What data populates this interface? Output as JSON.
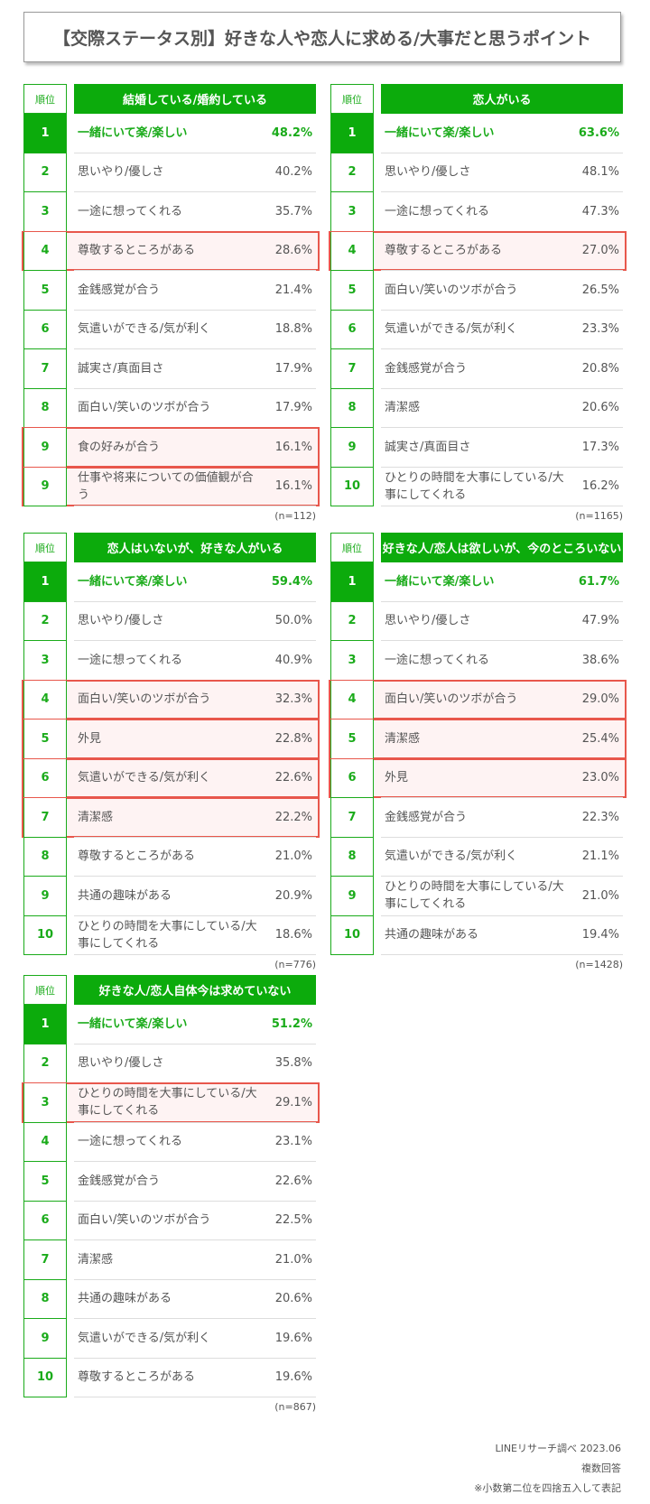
{
  "header": {
    "title": "【交際ステータス別】好きな人や恋人に求める/大事だと思うポイント"
  },
  "rank_header": "順位",
  "tables": [
    {
      "title": "結婚している/婚約している",
      "n": "(n=112)",
      "highlight_rows": [
        3,
        8,
        9
      ],
      "rows": [
        [
          "1",
          "一緒にいて楽/楽しい",
          "48.2%"
        ],
        [
          "2",
          "思いやり/優しさ",
          "40.2%"
        ],
        [
          "3",
          "一途に想ってくれる",
          "35.7%"
        ],
        [
          "4",
          "尊敬するところがある",
          "28.6%"
        ],
        [
          "5",
          "金銭感覚が合う",
          "21.4%"
        ],
        [
          "6",
          "気遣いができる/気が利く",
          "18.8%"
        ],
        [
          "7",
          "誠実さ/真面目さ",
          "17.9%"
        ],
        [
          "8",
          "面白い/笑いのツボが合う",
          "17.9%"
        ],
        [
          "9",
          "食の好みが合う",
          "16.1%"
        ],
        [
          "9",
          "仕事や将来についての価値観が合う",
          "16.1%"
        ]
      ]
    },
    {
      "title": "恋人がいる",
      "n": "(n=1165)",
      "highlight_rows": [
        3
      ],
      "rows": [
        [
          "1",
          "一緒にいて楽/楽しい",
          "63.6%"
        ],
        [
          "2",
          "思いやり/優しさ",
          "48.1%"
        ],
        [
          "3",
          "一途に想ってくれる",
          "47.3%"
        ],
        [
          "4",
          "尊敬するところがある",
          "27.0%"
        ],
        [
          "5",
          "面白い/笑いのツボが合う",
          "26.5%"
        ],
        [
          "6",
          "気遣いができる/気が利く",
          "23.3%"
        ],
        [
          "7",
          "金銭感覚が合う",
          "20.8%"
        ],
        [
          "8",
          "清潔感",
          "20.6%"
        ],
        [
          "9",
          "誠実さ/真面目さ",
          "17.3%"
        ],
        [
          "10",
          "ひとりの時間を大事にしている/大事にしてくれる",
          "16.2%"
        ]
      ]
    },
    {
      "title": "恋人はいないが、好きな人がいる",
      "n": "(n=776)",
      "highlight_rows": [
        3,
        4,
        5,
        6
      ],
      "rows": [
        [
          "1",
          "一緒にいて楽/楽しい",
          "59.4%"
        ],
        [
          "2",
          "思いやり/優しさ",
          "50.0%"
        ],
        [
          "3",
          "一途に想ってくれる",
          "40.9%"
        ],
        [
          "4",
          "面白い/笑いのツボが合う",
          "32.3%"
        ],
        [
          "5",
          "外見",
          "22.8%"
        ],
        [
          "6",
          "気遣いができる/気が利く",
          "22.6%"
        ],
        [
          "7",
          "清潔感",
          "22.2%"
        ],
        [
          "8",
          "尊敬するところがある",
          "21.0%"
        ],
        [
          "9",
          "共通の趣味がある",
          "20.9%"
        ],
        [
          "10",
          "ひとりの時間を大事にしている/大事にしてくれる",
          "18.6%"
        ]
      ]
    },
    {
      "title": "好きな人/恋人は欲しいが、今のところいない",
      "n": "(n=1428)",
      "highlight_rows": [
        3,
        4,
        5
      ],
      "rows": [
        [
          "1",
          "一緒にいて楽/楽しい",
          "61.7%"
        ],
        [
          "2",
          "思いやり/優しさ",
          "47.9%"
        ],
        [
          "3",
          "一途に想ってくれる",
          "38.6%"
        ],
        [
          "4",
          "面白い/笑いのツボが合う",
          "29.0%"
        ],
        [
          "5",
          "清潔感",
          "25.4%"
        ],
        [
          "6",
          "外見",
          "23.0%"
        ],
        [
          "7",
          "金銭感覚が合う",
          "22.3%"
        ],
        [
          "8",
          "気遣いができる/気が利く",
          "21.1%"
        ],
        [
          "9",
          "ひとりの時間を大事にしている/大事にしてくれる",
          "21.0%"
        ],
        [
          "10",
          "共通の趣味がある",
          "19.4%"
        ]
      ]
    },
    {
      "title": "好きな人/恋人自体今は求めていない",
      "n": "(n=867)",
      "highlight_rows": [
        2
      ],
      "rows": [
        [
          "1",
          "一緒にいて楽/楽しい",
          "51.2%"
        ],
        [
          "2",
          "思いやり/優しさ",
          "35.8%"
        ],
        [
          "3",
          "ひとりの時間を大事にしている/大事にしてくれる",
          "29.1%"
        ],
        [
          "4",
          "一途に想ってくれる",
          "23.1%"
        ],
        [
          "5",
          "金銭感覚が合う",
          "22.6%"
        ],
        [
          "6",
          "面白い/笑いのツボが合う",
          "22.5%"
        ],
        [
          "7",
          "清潔感",
          "21.0%"
        ],
        [
          "8",
          "共通の趣味がある",
          "20.6%"
        ],
        [
          "9",
          "気遣いができる/気が利く",
          "19.6%"
        ],
        [
          "10",
          "尊敬するところがある",
          "19.6%"
        ]
      ]
    }
  ],
  "footer": [
    "LINEリサーチ調べ 2023.06",
    "複数回答",
    "※小数第二位を四捨五入して表記"
  ]
}
